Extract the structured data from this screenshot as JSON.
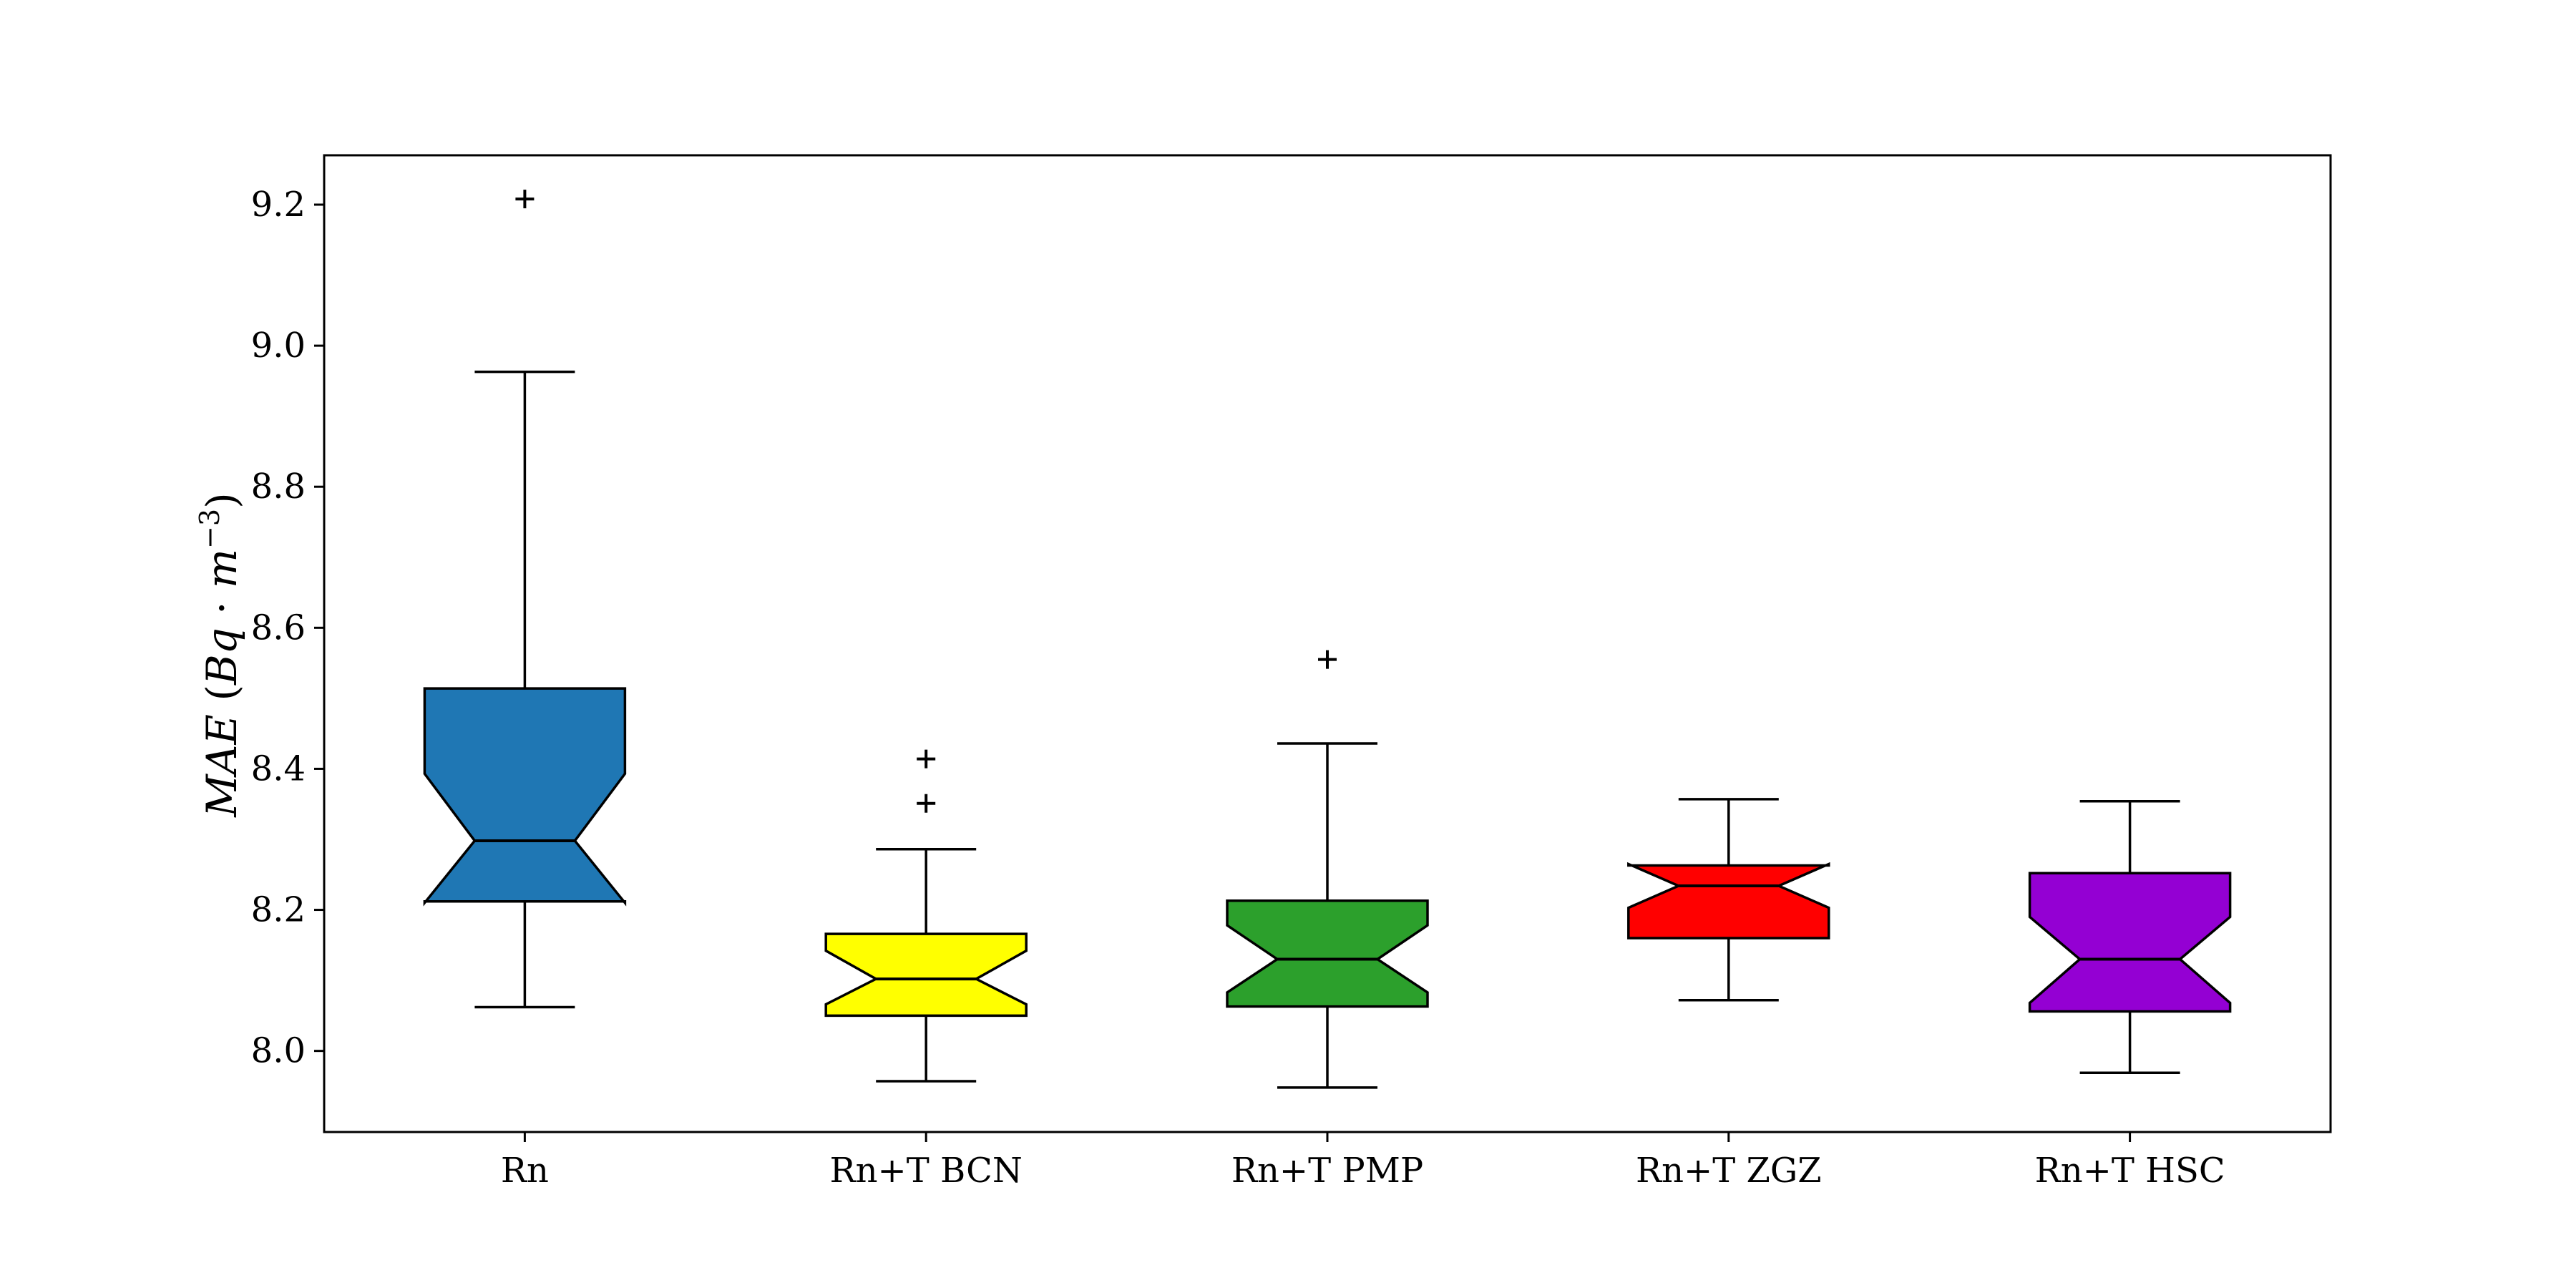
{
  "chart_data": {
    "type": "box",
    "notched": true,
    "title": "",
    "xlabel": "",
    "ylabel": {
      "italic_prefix": "MAE",
      "open_paren": "(",
      "unit_base": "Bq",
      "dot": "·",
      "unit_m": "m",
      "unit_exponent": "−3",
      "close_paren": ")"
    },
    "ylim": [
      7.885,
      9.27
    ],
    "yticks": [
      "8.0",
      "8.2",
      "8.4",
      "8.6",
      "8.8",
      "9.0",
      "9.2"
    ],
    "grid": false,
    "categories": [
      "Rn",
      "Rn+T BCN",
      "Rn+T PMP",
      "Rn+T ZGZ",
      "Rn+T HSC"
    ],
    "series": [
      {
        "category": "Rn",
        "color": "#1f77b4",
        "whisker_low": 8.062,
        "q1": 8.212,
        "notch_low": 8.21,
        "median": 8.298,
        "notch_high": 8.393,
        "q3": 8.514,
        "whisker_high": 8.963,
        "outliers": [
          9.208
        ]
      },
      {
        "category": "Rn+T BCN",
        "color": "#ffff00",
        "whisker_low": 7.957,
        "q1": 8.05,
        "notch_low": 8.066,
        "median": 8.102,
        "notch_high": 8.142,
        "q3": 8.166,
        "whisker_high": 8.286,
        "outliers": [
          8.351,
          8.414
        ]
      },
      {
        "category": "Rn+T PMP",
        "color": "#2ca02c",
        "whisker_low": 7.948,
        "q1": 8.063,
        "notch_low": 8.083,
        "median": 8.13,
        "notch_high": 8.178,
        "q3": 8.213,
        "whisker_high": 8.436,
        "outliers": [
          8.555
        ]
      },
      {
        "category": "Rn+T ZGZ",
        "color": "#ff0000",
        "whisker_low": 8.072,
        "q1": 8.16,
        "notch_low": 8.203,
        "median": 8.234,
        "notch_high": 8.265,
        "q3": 8.263,
        "whisker_high": 8.357,
        "outliers": []
      },
      {
        "category": "Rn+T HSC",
        "color": "#9400d3",
        "whisker_low": 7.969,
        "q1": 8.056,
        "notch_low": 8.068,
        "median": 8.13,
        "notch_high": 8.19,
        "q3": 8.252,
        "whisker_high": 8.354,
        "outliers": []
      }
    ]
  }
}
